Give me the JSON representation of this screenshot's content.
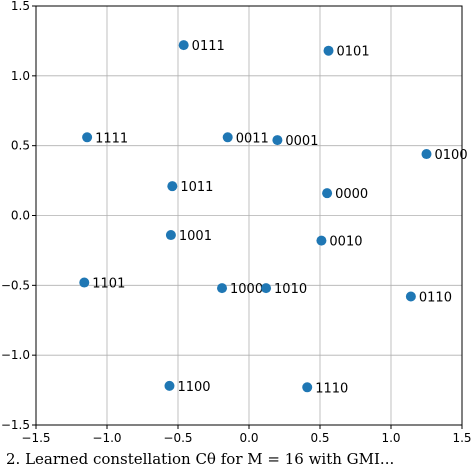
{
  "chart_data": {
    "type": "scatter",
    "title": "",
    "xlabel": "",
    "ylabel": "",
    "xlim": [
      -1.5,
      1.5
    ],
    "ylim": [
      -1.5,
      1.5
    ],
    "grid": true,
    "marker_color": "#1f77b4",
    "x_ticks": [
      -1.5,
      -1.0,
      -0.5,
      0.0,
      0.5,
      1.0,
      1.5
    ],
    "y_ticks": [
      -1.5,
      -1.0,
      -0.5,
      0.0,
      0.5,
      1.0,
      1.5
    ],
    "x_tick_labels": [
      "−1.5",
      "−1.0",
      "−0.5",
      "0.0",
      "0.5",
      "1.0",
      "1.5"
    ],
    "y_tick_labels": [
      "−1.5",
      "−1.0",
      "−0.5",
      "0.0",
      "0.5",
      "1.0",
      "1.5"
    ],
    "points": [
      {
        "label": "0111",
        "x": -0.46,
        "y": 1.22
      },
      {
        "label": "0101",
        "x": 0.56,
        "y": 1.18
      },
      {
        "label": "1111",
        "x": -1.14,
        "y": 0.56
      },
      {
        "label": "0011",
        "x": -0.15,
        "y": 0.56
      },
      {
        "label": "0001",
        "x": 0.2,
        "y": 0.54
      },
      {
        "label": "0100",
        "x": 1.25,
        "y": 0.44
      },
      {
        "label": "1011",
        "x": -0.54,
        "y": 0.21
      },
      {
        "label": "0000",
        "x": 0.55,
        "y": 0.16
      },
      {
        "label": "1001",
        "x": -0.55,
        "y": -0.14
      },
      {
        "label": "0010",
        "x": 0.51,
        "y": -0.18
      },
      {
        "label": "1101",
        "x": -1.16,
        "y": -0.48
      },
      {
        "label": "1000",
        "x": -0.19,
        "y": -0.52
      },
      {
        "label": "1010",
        "x": 0.12,
        "y": -0.52
      },
      {
        "label": "0110",
        "x": 1.14,
        "y": -0.58
      },
      {
        "label": "1100",
        "x": -0.56,
        "y": -1.22
      },
      {
        "label": "1110",
        "x": 0.41,
        "y": -1.23
      }
    ]
  },
  "caption": "2. Learned constellation Cθ for M = 16 with GMI..."
}
